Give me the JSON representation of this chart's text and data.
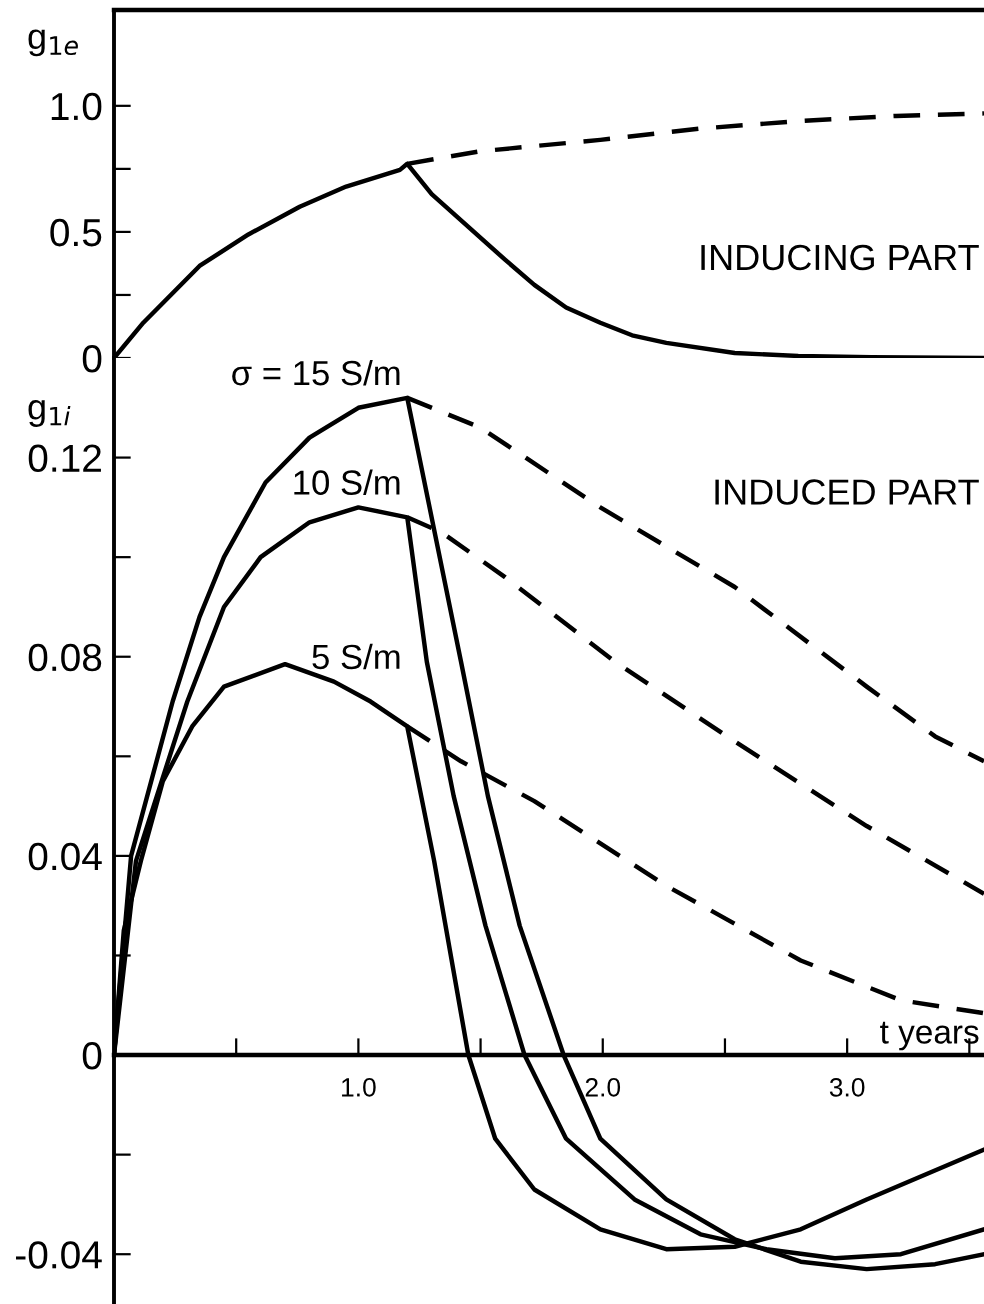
{
  "chart_data": [
    {
      "type": "line",
      "ylabel": "g$_{1e}$",
      "xlim": [
        0,
        3.56
      ],
      "ylim": [
        0,
        1.38
      ],
      "tick_labels": "y",
      "grid": false,
      "legend": false,
      "marker": "none",
      "yticks": [
        0,
        {
          "value": 0.25,
          "label": null
        },
        0.5,
        {
          "value": 0.75,
          "label": null
        },
        {
          "value": 1.0,
          "label": "1.0"
        }
      ],
      "annotations": [
        "INDUCING PART"
      ],
      "series": [
        {
          "color": "#000000",
          "line_style": "solid",
          "x": [
            0,
            0.12,
            0.35,
            0.55,
            0.76,
            0.95,
            1.17,
            1.2,
            1.3,
            1.45,
            1.6,
            1.72,
            1.85,
            1.99,
            2.12,
            2.26,
            2.54,
            2.8,
            3.1,
            3.56
          ],
          "values": [
            0,
            0.14,
            0.365,
            0.49,
            0.6,
            0.68,
            0.746,
            0.77,
            0.65,
            0.52,
            0.39,
            0.29,
            0.2,
            0.14,
            0.09,
            0.06,
            0.02,
            0.008,
            0.003,
            0
          ]
        },
        {
          "color": "#000000",
          "line_style": "dashed",
          "x": [
            1.2,
            1.5,
            1.99,
            2.4,
            2.81,
            3.2,
            3.56
          ],
          "values": [
            0.77,
            0.82,
            0.865,
            0.91,
            0.94,
            0.96,
            0.97
          ]
        }
      ]
    },
    {
      "type": "line",
      "ylabel": "g$_{1i}$",
      "xlabel": "t years",
      "xlim": [
        0,
        3.56
      ],
      "ylim": [
        -0.05,
        0.14
      ],
      "grid": false,
      "legend": false,
      "marker": "none",
      "xticks": [
        {
          "value": 0.5,
          "label": null
        },
        {
          "value": 1.0,
          "label": "1.0"
        },
        {
          "value": 1.5,
          "label": null
        },
        {
          "value": 2.0,
          "label": "2.0"
        },
        {
          "value": 2.5,
          "label": null
        },
        {
          "value": 3.0,
          "label": "3.0"
        },
        {
          "value": 3.5,
          "label": null
        }
      ],
      "yticks": [
        {
          "value": -0.04,
          "label": "-0.04"
        },
        {
          "value": -0.02,
          "label": null
        },
        0,
        {
          "value": 0.02,
          "label": null
        },
        0.04,
        {
          "value": 0.06,
          "label": null
        },
        0.08,
        {
          "value": 0.1,
          "label": null
        },
        0.12
      ],
      "annotations": [
        "INDUCED PART"
      ],
      "series": [
        {
          "name": "σ = 15 S/m",
          "color": "#000000",
          "line_style": "solid",
          "x": [
            0,
            0.07,
            0.24,
            0.35,
            0.45,
            0.62,
            0.8,
            1.0,
            1.2,
            1.42,
            1.53,
            1.66,
            1.84,
            1.99,
            2.26,
            2.54,
            2.81,
            3.08,
            3.36,
            3.56
          ],
          "values": [
            0,
            0.04,
            0.071,
            0.088,
            0.1,
            0.115,
            0.124,
            0.13,
            0.132,
            0.079,
            0.052,
            0.026,
            0,
            -0.0168,
            -0.029,
            -0.037,
            -0.0415,
            -0.043,
            -0.042,
            -0.04
          ]
        },
        {
          "color": "#000000",
          "line_style": "dashed",
          "x": [
            1.2,
            1.5,
            1.99,
            2.54,
            3.08,
            3.36,
            3.56
          ],
          "values": [
            0.132,
            0.126,
            0.11,
            0.094,
            0.074,
            0.064,
            0.059
          ]
        },
        {
          "name": "10 S/m",
          "color": "#000000",
          "line_style": "solid",
          "x": [
            0,
            0.09,
            0.3,
            0.45,
            0.6,
            0.8,
            1.0,
            1.2,
            1.28,
            1.39,
            1.52,
            1.68,
            1.85,
            2.13,
            2.4,
            2.67,
            2.95,
            3.22,
            3.56
          ],
          "values": [
            0,
            0.039,
            0.071,
            0.09,
            0.1,
            0.107,
            0.11,
            0.108,
            0.079,
            0.052,
            0.026,
            0,
            -0.0168,
            -0.029,
            -0.036,
            -0.039,
            -0.0408,
            -0.04,
            -0.035
          ]
        },
        {
          "color": "#000000",
          "line_style": "dashed",
          "x": [
            1.2,
            1.34,
            1.6,
            2.05,
            2.54,
            3.08,
            3.56
          ],
          "values": [
            0.108,
            0.105,
            0.096,
            0.079,
            0.063,
            0.046,
            0.0324
          ]
        },
        {
          "name": "5 S/m",
          "color": "#000000",
          "line_style": "solid",
          "x": [
            0,
            0.04,
            0.11,
            0.2,
            0.32,
            0.45,
            0.7,
            0.9,
            1.05,
            1.2,
            1.31,
            1.45,
            1.56,
            1.72,
            1.99,
            2.26,
            2.54,
            2.81,
            3.08,
            3.56
          ],
          "values": [
            0,
            0.025,
            0.039,
            0.055,
            0.066,
            0.074,
            0.0785,
            0.075,
            0.071,
            0.066,
            0.039,
            0,
            -0.0168,
            -0.027,
            -0.035,
            -0.039,
            -0.0385,
            -0.035,
            -0.029,
            -0.019
          ]
        },
        {
          "color": "#000000",
          "line_style": "dashed",
          "x": [
            1.2,
            1.42,
            1.72,
            2.26,
            2.81,
            3.22,
            3.56
          ],
          "values": [
            0.066,
            0.059,
            0.051,
            0.034,
            0.019,
            0.011,
            0.0084
          ]
        }
      ]
    }
  ]
}
